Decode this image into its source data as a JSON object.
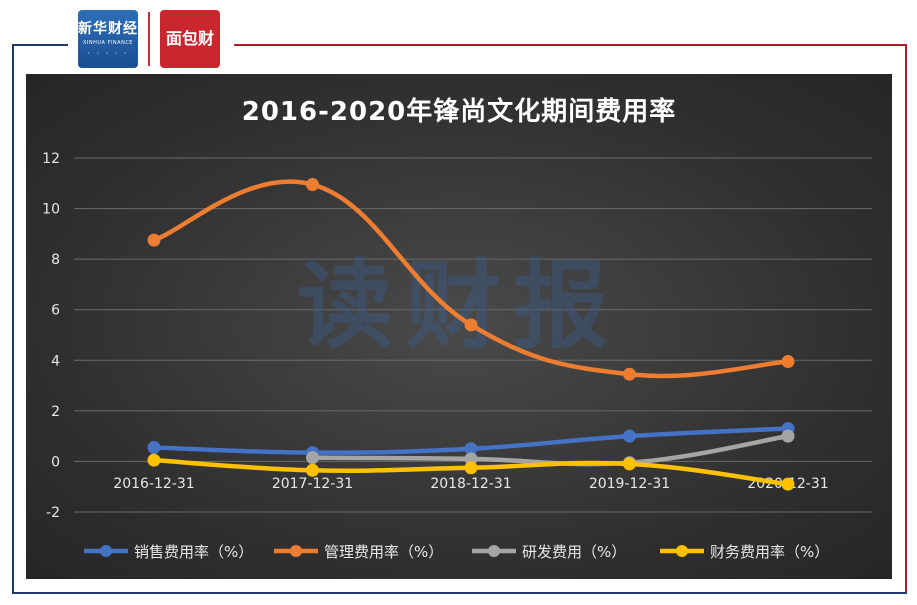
{
  "branding": {
    "logo_left_text": "新华财经",
    "logo_left_sub": "XINHUA FINANCE",
    "logo_right_text": "面包财经",
    "watermark": "读财报"
  },
  "chart_data": {
    "type": "line",
    "title": "2016-2020年锋尚文化期间费用率",
    "categories": [
      "2016-12-31",
      "2017-12-31",
      "2018-12-31",
      "2019-12-31",
      "2020-12-31"
    ],
    "ylim": [
      -2,
      12
    ],
    "yticks": [
      12,
      10,
      8,
      6,
      4,
      2,
      0,
      -2
    ],
    "grid": true,
    "smooth": true,
    "legend_position": "bottom",
    "series": [
      {
        "name": "销售费用率（%）",
        "color": "#4472c4",
        "values": [
          0.55,
          0.35,
          0.5,
          1.0,
          1.3
        ]
      },
      {
        "name": "管理费用率（%）",
        "color": "#ed7d31",
        "values": [
          8.75,
          10.95,
          5.4,
          3.45,
          3.95
        ]
      },
      {
        "name": "研发费用（%）",
        "color": "#a5a5a5",
        "values": [
          null,
          0.15,
          0.1,
          -0.05,
          1.0
        ]
      },
      {
        "name": "财务费用率（%）",
        "color": "#ffc000",
        "values": [
          0.05,
          -0.35,
          -0.25,
          -0.1,
          -0.9
        ]
      }
    ]
  }
}
